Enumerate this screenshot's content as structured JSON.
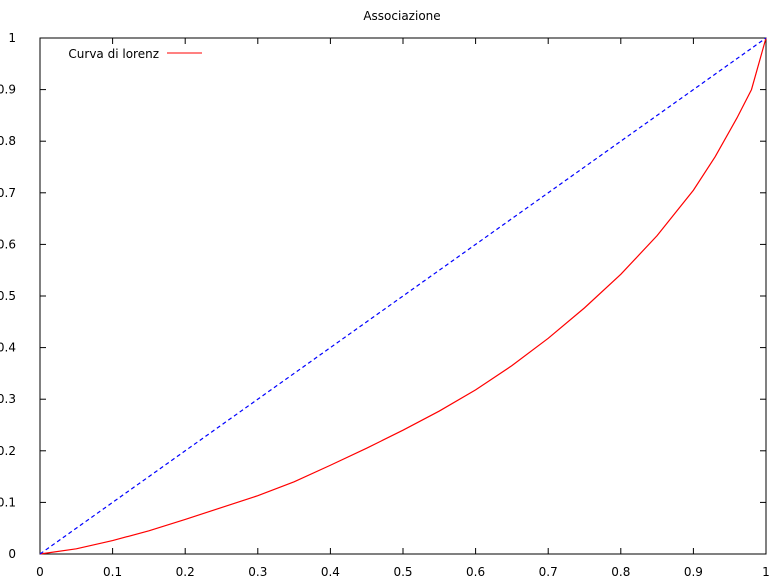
{
  "chart_data": {
    "type": "line",
    "title": "Associazione",
    "xlabel": "",
    "ylabel": "",
    "xlim": [
      0,
      1
    ],
    "ylim": [
      0,
      1
    ],
    "x_ticks": [
      "0",
      "0.1",
      "0.2",
      "0.3",
      "0.4",
      "0.5",
      "0.6",
      "0.7",
      "0.8",
      "0.9",
      "1"
    ],
    "y_ticks": [
      "0",
      "0.1",
      "0.2",
      "0.3",
      "0.4",
      "0.5",
      "0.6",
      "0.7",
      "0.8",
      "0.9",
      "1"
    ],
    "grid": false,
    "legend_position": "top-left",
    "series": [
      {
        "name": "Curva di lorenz",
        "color": "#ff0000",
        "style": "solid",
        "x": [
          0,
          0.05,
          0.1,
          0.15,
          0.2,
          0.25,
          0.3,
          0.35,
          0.4,
          0.45,
          0.5,
          0.55,
          0.6,
          0.65,
          0.7,
          0.75,
          0.8,
          0.85,
          0.9,
          0.93,
          0.96,
          0.98,
          1
        ],
        "y": [
          0,
          0.01,
          0.026,
          0.045,
          0.067,
          0.09,
          0.113,
          0.14,
          0.172,
          0.205,
          0.24,
          0.277,
          0.318,
          0.365,
          0.418,
          0.477,
          0.542,
          0.617,
          0.705,
          0.77,
          0.845,
          0.9,
          1
        ]
      },
      {
        "name": "",
        "color": "#0000ff",
        "style": "dashed",
        "x": [
          0,
          1
        ],
        "y": [
          0,
          1
        ]
      }
    ]
  }
}
